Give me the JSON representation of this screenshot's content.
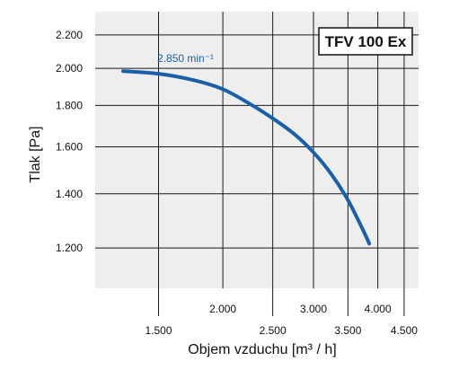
{
  "chart_data": {
    "type": "line",
    "model_label": "TFV 100 Ex",
    "xlabel": "Objem vzduchu [m³ / h]",
    "ylabel": "Tlak [Pa]",
    "x_scale": "log",
    "y_scale": "log",
    "xlim": [
      1130,
      4800
    ],
    "ylim": [
      1070,
      2350
    ],
    "x_ticks": [
      {
        "value": 1500,
        "label": "1.500"
      },
      {
        "value": 2000,
        "label": "2.000"
      },
      {
        "value": 2500,
        "label": "2.500"
      },
      {
        "value": 3000,
        "label": "3.000"
      },
      {
        "value": 3500,
        "label": "3.500"
      },
      {
        "value": 4000,
        "label": "4.000"
      },
      {
        "value": 4500,
        "label": "4.500"
      }
    ],
    "y_ticks": [
      {
        "value": 1200,
        "label": "1.200"
      },
      {
        "value": 1400,
        "label": "1.400"
      },
      {
        "value": 1600,
        "label": "1.600"
      },
      {
        "value": 1800,
        "label": "1.800"
      },
      {
        "value": 2000,
        "label": "2.000"
      },
      {
        "value": 2200,
        "label": "2.200"
      }
    ],
    "grid": true,
    "series": [
      {
        "name": "2.850 min⁻¹",
        "color": "#1a5fa8",
        "points": [
          {
            "x": 1280,
            "y": 1985
          },
          {
            "x": 1500,
            "y": 1970
          },
          {
            "x": 1750,
            "y": 1935
          },
          {
            "x": 2000,
            "y": 1885
          },
          {
            "x": 2250,
            "y": 1810
          },
          {
            "x": 2500,
            "y": 1735
          },
          {
            "x": 2750,
            "y": 1660
          },
          {
            "x": 3000,
            "y": 1575
          },
          {
            "x": 3250,
            "y": 1480
          },
          {
            "x": 3500,
            "y": 1375
          },
          {
            "x": 3750,
            "y": 1260
          },
          {
            "x": 3850,
            "y": 1215
          }
        ]
      }
    ]
  }
}
